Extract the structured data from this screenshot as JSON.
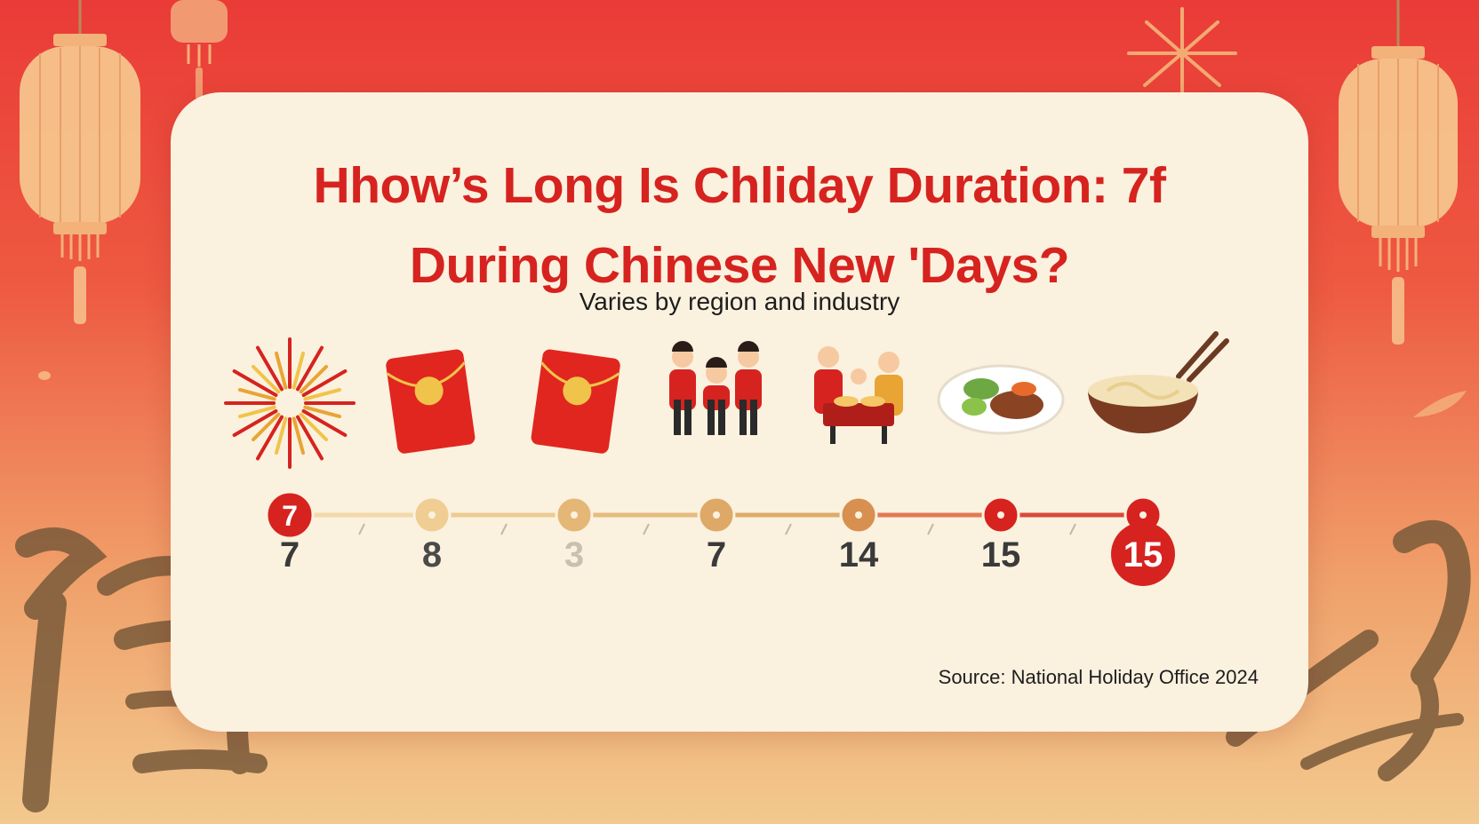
{
  "title_line1": "Hhow’s Long Is Chliday Duration: 7f",
  "title_line2": "During Chinese New ʹDays?",
  "subtitle": "Varies by region and industry",
  "source": "Source: National Holiday Office 2024",
  "colors": {
    "accent_red": "#d6231f",
    "gold": "#e9bf7a",
    "card": "#fbf1df"
  },
  "timeline": [
    {
      "icon": "fireworks-icon",
      "marker": "7",
      "value": "7"
    },
    {
      "icon": "red-envelope-icon",
      "marker": "",
      "value": "8"
    },
    {
      "icon": "red-envelope-icon",
      "marker": "",
      "value": "3"
    },
    {
      "icon": "family-icon",
      "marker": "",
      "value": "7"
    },
    {
      "icon": "family-dinner-icon",
      "marker": "",
      "value": "14"
    },
    {
      "icon": "dish-plate-icon",
      "marker": "",
      "value": "15"
    },
    {
      "icon": "noodle-bowl-icon",
      "marker": "",
      "value": "15"
    }
  ],
  "decor": {
    "calligraphy_glyph": "福"
  }
}
